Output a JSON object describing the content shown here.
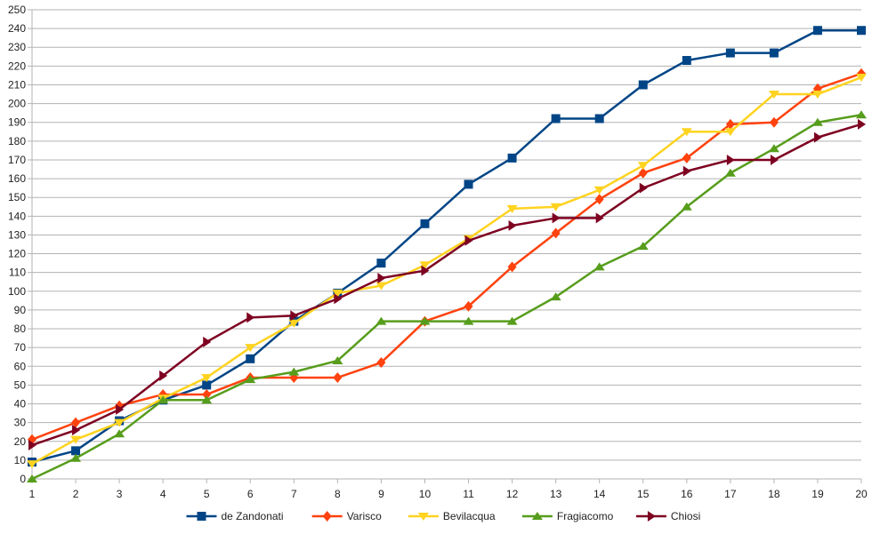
{
  "chart_data": {
    "type": "line",
    "title": "",
    "xlabel": "",
    "ylabel": "",
    "x": [
      1,
      2,
      3,
      4,
      5,
      6,
      7,
      8,
      9,
      10,
      11,
      12,
      13,
      14,
      15,
      16,
      17,
      18,
      19,
      20
    ],
    "ylim": [
      0,
      250
    ],
    "ytick_step": 10,
    "grid": true,
    "legend_position": "bottom",
    "series": [
      {
        "name": "de Zandonati",
        "color": "#004586",
        "marker": "square",
        "values": [
          9,
          15,
          31,
          42,
          50,
          64,
          84,
          99,
          115,
          136,
          157,
          171,
          192,
          192,
          210,
          223,
          227,
          227,
          239,
          239
        ]
      },
      {
        "name": "Varisco",
        "color": "#ff420e",
        "marker": "diamond",
        "values": [
          21,
          30,
          39,
          45,
          45,
          54,
          54,
          54,
          62,
          84,
          92,
          113,
          131,
          149,
          163,
          171,
          189,
          190,
          208,
          216
        ]
      },
      {
        "name": "Bevilacqua",
        "color": "#ffd320",
        "marker": "triangle-down",
        "values": [
          8,
          21,
          30,
          43,
          54,
          70,
          83,
          99,
          103,
          114,
          128,
          144,
          145,
          154,
          167,
          185,
          185,
          205,
          205,
          214
        ]
      },
      {
        "name": "Fragiacomo",
        "color": "#579d1c",
        "marker": "triangle-up",
        "values": [
          0,
          11,
          24,
          42,
          42,
          53,
          57,
          63,
          84,
          84,
          84,
          84,
          97,
          113,
          124,
          145,
          163,
          176,
          190,
          194
        ]
      },
      {
        "name": "Chiosi",
        "color": "#7e0021",
        "marker": "triangle-right",
        "values": [
          18,
          26,
          37,
          55,
          73,
          86,
          87,
          96,
          107,
          111,
          127,
          135,
          139,
          139,
          155,
          164,
          170,
          170,
          182,
          189
        ]
      }
    ]
  }
}
